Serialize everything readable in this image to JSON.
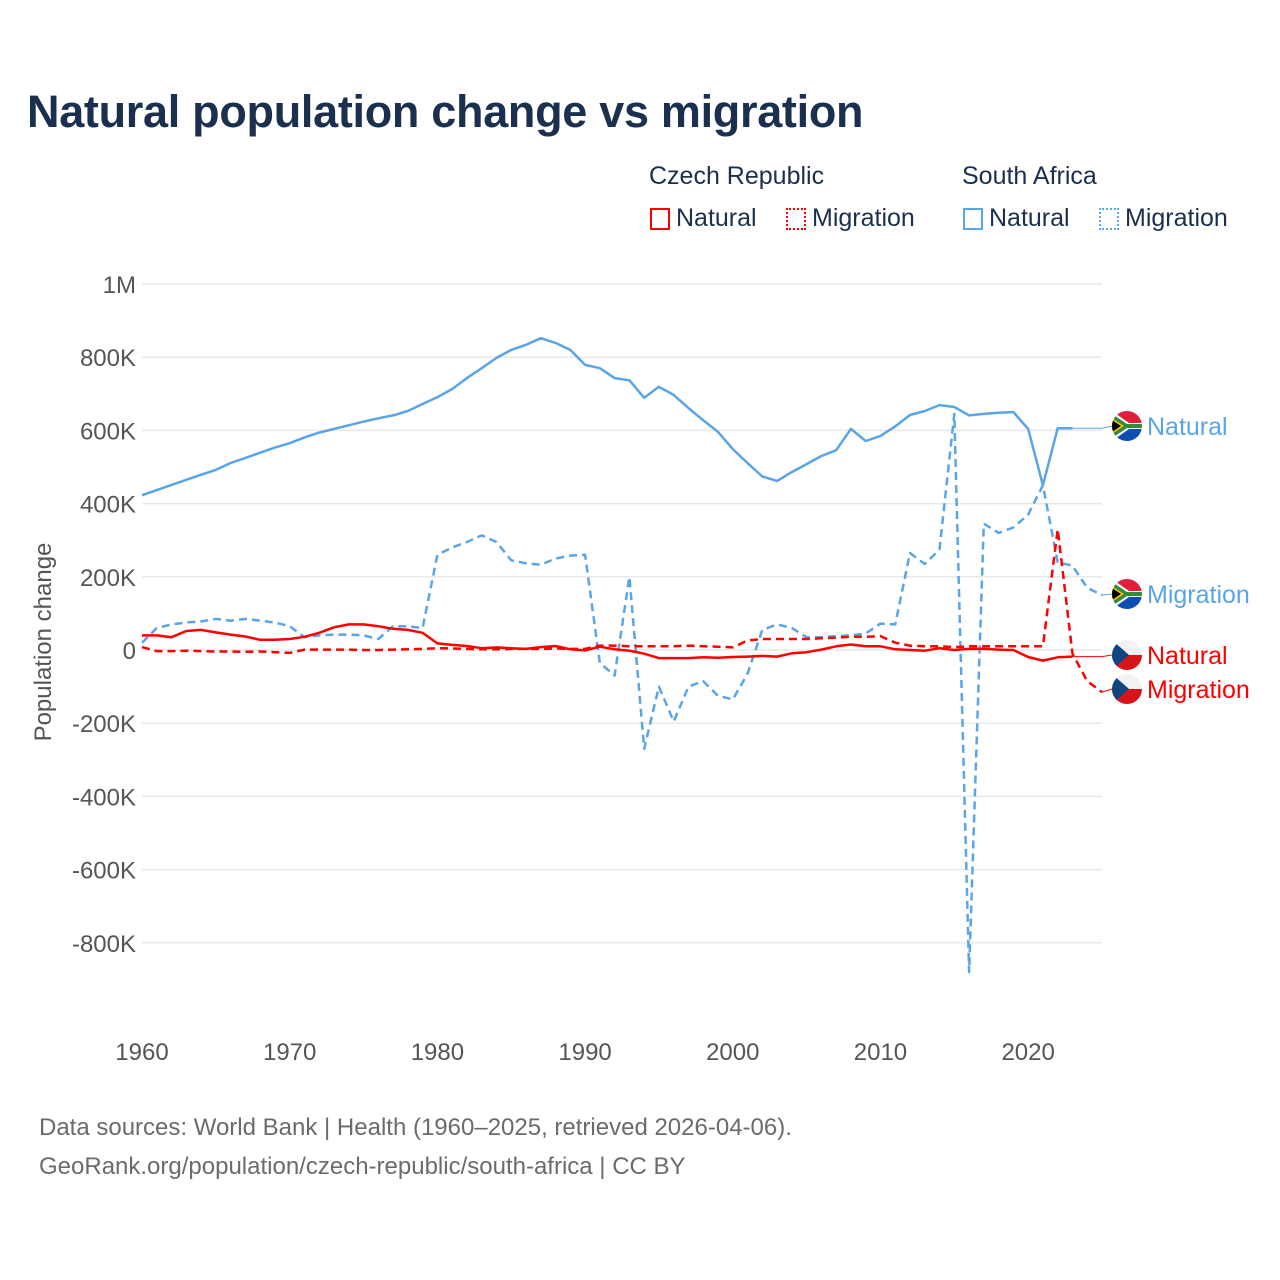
{
  "chart_data": {
    "type": "line",
    "title": "Natural population change vs migration",
    "ylabel": "Population change",
    "xlabel": "",
    "xlim": [
      1960,
      2025
    ],
    "ylim": [
      -1000000,
      1000000
    ],
    "x_ticks": [
      1960,
      1970,
      1980,
      1990,
      2000,
      2010,
      2020
    ],
    "x_tick_labels": [
      "1960",
      "1970",
      "1980",
      "1990",
      "2000",
      "2010",
      "2020"
    ],
    "y_ticks": [
      1000000,
      800000,
      600000,
      400000,
      200000,
      0,
      -200000,
      -400000,
      -600000,
      -800000
    ],
    "y_tick_labels": [
      "1M",
      "800K",
      "600K",
      "400K",
      "200K",
      "0",
      "-200K",
      "-400K",
      "-600K",
      "-800K"
    ],
    "grid": true,
    "legend": {
      "groups": [
        {
          "country": "Czech Republic",
          "items": [
            "Natural",
            "Migration"
          ]
        },
        {
          "country": "South Africa",
          "items": [
            "Natural",
            "Migration"
          ]
        }
      ],
      "placement": "top-right"
    },
    "start_year": 1960,
    "series": [
      {
        "name": "South Africa Natural",
        "label": "Natural",
        "country": "South Africa",
        "kind": "natural",
        "color": "#5aa4e8",
        "values_thousands": [
          423,
          437,
          451,
          465,
          479,
          492,
          511,
          525,
          539,
          553,
          565,
          581,
          594,
          604,
          614,
          624,
          633,
          641,
          653,
          672,
          691,
          713,
          743,
          770,
          798,
          820,
          834,
          852,
          839,
          820,
          779,
          770,
          743,
          737,
          689,
          719,
          697,
          661,
          628,
          596,
          549,
          511,
          474,
          462,
          486,
          508,
          530,
          546,
          604,
          571,
          585,
          611,
          642,
          653,
          669,
          664,
          641,
          645,
          648,
          650,
          604,
          450,
          606,
          606
        ]
      },
      {
        "name": "South Africa Migration",
        "label": "Migration",
        "country": "South Africa",
        "kind": "migration",
        "color": "#5aa4e8",
        "values_thousands": [
          20,
          60,
          70,
          75,
          78,
          85,
          80,
          85,
          80,
          75,
          65,
          35,
          40,
          42,
          42,
          40,
          30,
          65,
          65,
          60,
          260,
          280,
          295,
          313,
          295,
          245,
          237,
          233,
          250,
          258,
          260,
          -35,
          -70,
          200,
          -270,
          -100,
          -195,
          -100,
          -85,
          -125,
          -135,
          -65,
          55,
          70,
          60,
          35,
          35,
          38,
          40,
          45,
          72,
          70,
          265,
          235,
          275,
          645,
          -880,
          345,
          320,
          335,
          370,
          450,
          240,
          230,
          170,
          150
        ]
      },
      {
        "name": "Czech Republic Natural",
        "label": "Natural",
        "country": "Czech Republic",
        "kind": "natural",
        "color": "#ff0000",
        "values_thousands": [
          40,
          40,
          35,
          52,
          55,
          48,
          42,
          37,
          28,
          28,
          30,
          36,
          47,
          62,
          70,
          70,
          65,
          58,
          55,
          47,
          18,
          14,
          11,
          5,
          7,
          5,
          3,
          8,
          11,
          2,
          -1,
          9,
          2,
          -2,
          -10,
          -22,
          -22,
          -22,
          -20,
          -21,
          -19,
          -18,
          -16,
          -18,
          -9,
          -6,
          1,
          10,
          15,
          10,
          10,
          2,
          0,
          -2,
          5,
          0,
          3,
          3,
          1,
          0,
          -19,
          -29,
          -20,
          -18
        ]
      },
      {
        "name": "Czech Republic Migration",
        "label": "Migration",
        "country": "Czech Republic",
        "kind": "migration",
        "color": "#ff0000",
        "values_thousands": [
          8,
          -3,
          -3,
          -2,
          -3,
          -4,
          -4,
          -5,
          -4,
          -6,
          -8,
          1,
          1,
          1,
          1,
          0,
          0,
          1,
          2,
          3,
          5,
          4,
          3,
          2,
          2,
          3,
          3,
          3,
          4,
          3,
          3,
          12,
          12,
          10,
          10,
          10,
          10,
          12,
          10,
          9,
          7,
          26,
          30,
          30,
          30,
          30,
          32,
          34,
          36,
          36,
          38,
          20,
          12,
          10,
          10,
          8,
          10,
          10,
          10,
          10,
          10,
          10,
          330,
          -10,
          -85,
          -115
        ]
      }
    ]
  },
  "legend_headers": {
    "czech": "Czech Republic",
    "south_africa": "South Africa"
  },
  "legend_labels": {
    "cz_natural": "Natural",
    "cz_migration": "Migration",
    "sa_natural": "Natural",
    "sa_migration": "Migration"
  },
  "footer": {
    "line1": "Data sources: World Bank | Health (1960–2025, retrieved 2026-04-06).",
    "line2": "GeoRank.org/population/czech-republic/south-africa | CC BY"
  }
}
